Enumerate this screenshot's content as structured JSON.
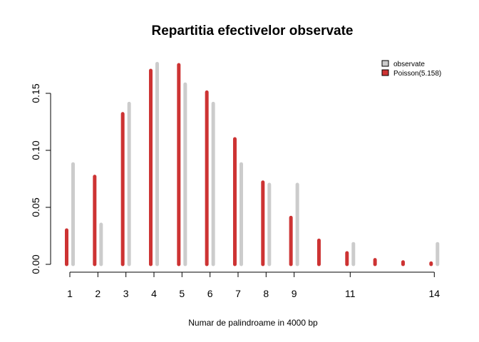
{
  "chart_data": {
    "type": "bar",
    "title": "Repartitia efectivelor observate",
    "xlabel": "Numar de palindroame in 4000 bp",
    "ylabel": "",
    "x": [
      1,
      2,
      3,
      4,
      5,
      6,
      7,
      8,
      9,
      10,
      11,
      12,
      13,
      14
    ],
    "x_tick_labels": [
      "1",
      "2",
      "3",
      "4",
      "5",
      "6",
      "7",
      "8",
      "9",
      "11",
      "14"
    ],
    "x_tick_positions": [
      1,
      2,
      3,
      4,
      5,
      6,
      7,
      8,
      9,
      11,
      14
    ],
    "y_ticks": [
      0.0,
      0.05,
      0.1,
      0.15
    ],
    "y_tick_labels": [
      "0.00",
      "0.05",
      "0.10",
      "0.15"
    ],
    "xlim": [
      1,
      14
    ],
    "ylim": [
      0,
      0.177
    ],
    "grid": false,
    "legend_position": "top-right",
    "series": [
      {
        "name": "observate",
        "color": "#cccccc",
        "values": [
          0.088,
          0.035,
          0.141,
          0.176,
          0.158,
          0.141,
          0.088,
          0.07,
          0.07,
          0.0,
          0.018,
          0.0,
          0.0,
          0.018
        ]
      },
      {
        "name": "Poisson(5.158)",
        "color": "#cd3333",
        "values": [
          0.03,
          0.077,
          0.132,
          0.17,
          0.175,
          0.151,
          0.11,
          0.072,
          0.041,
          0.021,
          0.01,
          0.004,
          0.002,
          0.001
        ]
      }
    ]
  }
}
